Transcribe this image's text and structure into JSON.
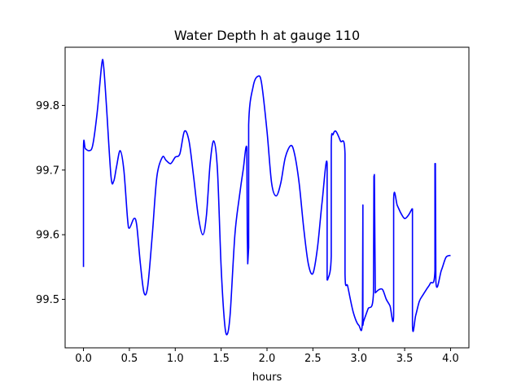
{
  "chart_data": {
    "type": "line",
    "title": "Water Depth h at gauge 110",
    "xlabel": "hours",
    "ylabel": "",
    "xlim": [
      -0.2,
      4.2
    ],
    "ylim": [
      99.425,
      99.89
    ],
    "xticks": [
      0.0,
      0.5,
      1.0,
      1.5,
      2.0,
      2.5,
      3.0,
      3.5,
      4.0
    ],
    "xtick_labels": [
      "0.0",
      "0.5",
      "1.0",
      "1.5",
      "2.0",
      "2.5",
      "3.0",
      "3.5",
      "4.0"
    ],
    "yticks": [
      99.5,
      99.6,
      99.7,
      99.8
    ],
    "ytick_labels": [
      "99.5",
      "99.6",
      "99.7",
      "99.8"
    ],
    "grid": false,
    "series": [
      {
        "color": "#0000ff",
        "x": [
          0.0,
          0.0,
          0.02,
          0.06,
          0.1,
          0.15,
          0.2,
          0.22,
          0.25,
          0.3,
          0.33,
          0.36,
          0.4,
          0.44,
          0.48,
          0.5,
          0.55,
          0.58,
          0.62,
          0.66,
          0.7,
          0.75,
          0.8,
          0.86,
          0.9,
          0.95,
          1.0,
          1.05,
          1.1,
          1.15,
          1.2,
          1.25,
          1.3,
          1.34,
          1.38,
          1.42,
          1.46,
          1.5,
          1.54,
          1.57,
          1.6,
          1.65,
          1.7,
          1.74,
          1.78,
          1.785,
          1.79,
          1.8,
          1.8,
          1.85,
          1.9,
          1.94,
          2.0,
          2.05,
          2.1,
          2.15,
          2.2,
          2.26,
          2.3,
          2.35,
          2.4,
          2.45,
          2.5,
          2.55,
          2.6,
          2.655,
          2.655,
          2.66,
          2.7,
          2.7,
          2.72,
          2.75,
          2.8,
          2.85,
          2.85,
          2.88,
          2.94,
          3.0,
          3.04,
          3.045,
          3.045,
          3.05,
          3.1,
          3.16,
          3.165,
          3.17,
          3.18,
          3.18,
          3.22,
          3.26,
          3.3,
          3.34,
          3.38,
          3.38,
          3.42,
          3.46,
          3.5,
          3.54,
          3.58,
          3.585,
          3.585,
          3.62,
          3.66,
          3.7,
          3.74,
          3.78,
          3.83,
          3.83,
          3.835,
          3.84,
          3.9,
          3.95,
          4.0
        ],
        "y": [
          99.55,
          99.733,
          99.733,
          99.73,
          99.738,
          99.79,
          99.865,
          99.86,
          99.8,
          99.69,
          99.683,
          99.705,
          99.73,
          99.7,
          99.625,
          99.61,
          99.625,
          99.615,
          99.555,
          99.51,
          99.52,
          99.6,
          99.69,
          99.72,
          99.715,
          99.71,
          99.72,
          99.725,
          99.76,
          99.745,
          99.69,
          99.63,
          99.6,
          99.63,
          99.71,
          99.745,
          99.7,
          99.55,
          99.46,
          99.447,
          99.48,
          99.6,
          99.66,
          99.7,
          99.733,
          99.6,
          99.555,
          99.58,
          99.77,
          99.83,
          99.845,
          99.835,
          99.76,
          99.68,
          99.66,
          99.68,
          99.72,
          99.738,
          99.725,
          99.68,
          99.61,
          99.555,
          99.54,
          99.58,
          99.65,
          99.71,
          99.53,
          99.53,
          99.567,
          99.738,
          99.755,
          99.76,
          99.745,
          99.725,
          99.54,
          99.52,
          99.48,
          99.46,
          99.468,
          99.646,
          99.46,
          99.465,
          99.485,
          99.51,
          99.69,
          99.693,
          99.51,
          99.51,
          99.515,
          99.515,
          99.5,
          99.49,
          99.475,
          99.655,
          99.645,
          99.633,
          99.625,
          99.63,
          99.64,
          99.64,
          99.46,
          99.475,
          99.497,
          99.507,
          99.516,
          99.525,
          99.545,
          99.71,
          99.71,
          99.528,
          99.545,
          99.565,
          99.568
        ]
      }
    ]
  }
}
